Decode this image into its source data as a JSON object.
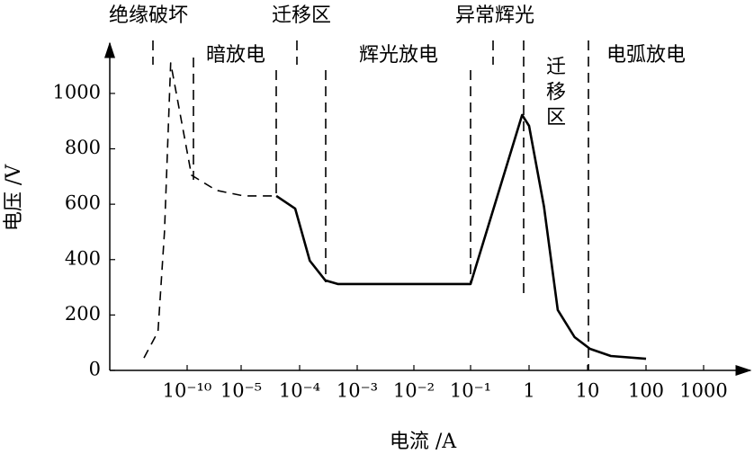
{
  "chart_data": {
    "type": "line",
    "x_label": "电流 /A",
    "y_label": "电压 /V",
    "annotations": [
      "绝缘破坏",
      "迁移区",
      "异常辉光",
      "暗放电",
      "辉光放电",
      "迁移区",
      "电弧放电"
    ],
    "log_x": true,
    "xticks": [
      {
        "value": 1e-10,
        "label": "10⁻¹⁰"
      },
      {
        "value": 1e-05,
        "label": "10⁻⁵"
      },
      {
        "value": 0.0001,
        "label": "10⁻⁴"
      },
      {
        "value": 0.001,
        "label": "10⁻³"
      },
      {
        "value": 0.01,
        "label": "10⁻²"
      },
      {
        "value": 0.1,
        "label": "10⁻¹"
      },
      1,
      10,
      100,
      1000
    ],
    "ylim": [
      0,
      1175
    ],
    "yticks": [
      0,
      200,
      400,
      600,
      800,
      1000
    ],
    "series": [
      {
        "color": "#000000",
        "style": "dashed",
        "x": [
          1e-14,
          2e-13,
          8e-13,
          3e-12,
          2.5e-10,
          5e-08,
          1.1e-05,
          4e-05
        ],
        "values": [
          45,
          140,
          500,
          1110,
          705,
          650,
          630,
          630
        ]
      },
      {
        "color": "#000000",
        "style": "solid",
        "x": [
          4e-05,
          8.4e-05,
          0.00015,
          0.00028,
          0.00046,
          0.1,
          0.76,
          1,
          1.8,
          3.1,
          6,
          11,
          25,
          100
        ],
        "values": [
          630,
          584,
          396,
          325,
          312,
          312,
          922,
          883,
          591,
          218,
          120,
          78,
          52,
          42
        ]
      }
    ]
  }
}
